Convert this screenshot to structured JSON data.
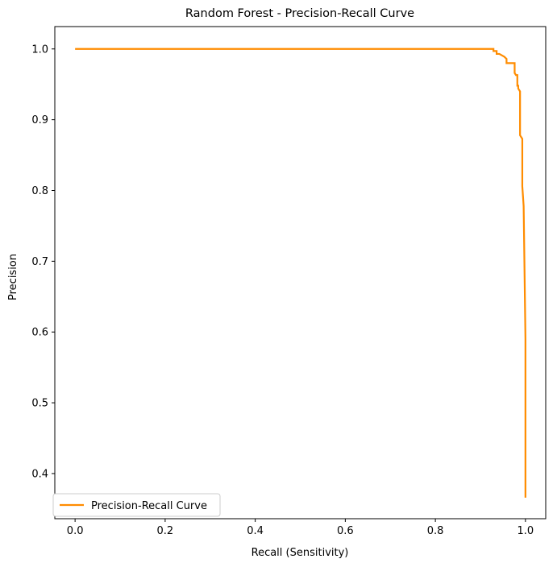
{
  "chart_data": {
    "type": "line",
    "title": "Random Forest - Precision-Recall Curve",
    "xlabel": "Recall (Sensitivity)",
    "ylabel": "Precision",
    "xlim": [
      -0.045,
      1.045
    ],
    "ylim": [
      0.3362,
      1.0316
    ],
    "xticks": [
      0.0,
      0.2,
      0.4,
      0.6,
      0.8,
      1.0
    ],
    "xtick_labels": [
      "0.0",
      "0.2",
      "0.4",
      "0.6",
      "0.8",
      "1.0"
    ],
    "yticks": [
      0.4,
      0.5,
      0.6,
      0.7,
      0.8,
      0.9,
      1.0
    ],
    "ytick_labels": [
      "0.4",
      "0.5",
      "0.6",
      "0.7",
      "0.8",
      "0.9",
      "1.0"
    ],
    "grid": false,
    "legend_position": "lower left",
    "series": [
      {
        "name": "Precision-Recall Curve",
        "color": "#ff8c00",
        "x": [
          0.0,
          0.924,
          0.929,
          0.929,
          0.936,
          0.936,
          0.942,
          0.953,
          0.958,
          0.958,
          0.976,
          0.976,
          0.979,
          0.982,
          0.982,
          0.984,
          0.984,
          0.988,
          0.988,
          0.993,
          0.993,
          0.996,
          1.0,
          1.0
        ],
        "y": [
          1.0,
          1.0,
          1.0,
          0.997,
          0.997,
          0.993,
          0.993,
          0.989,
          0.986,
          0.98,
          0.98,
          0.966,
          0.963,
          0.963,
          0.948,
          0.948,
          0.944,
          0.94,
          0.878,
          0.873,
          0.806,
          0.778,
          0.59,
          0.366
        ]
      }
    ]
  }
}
